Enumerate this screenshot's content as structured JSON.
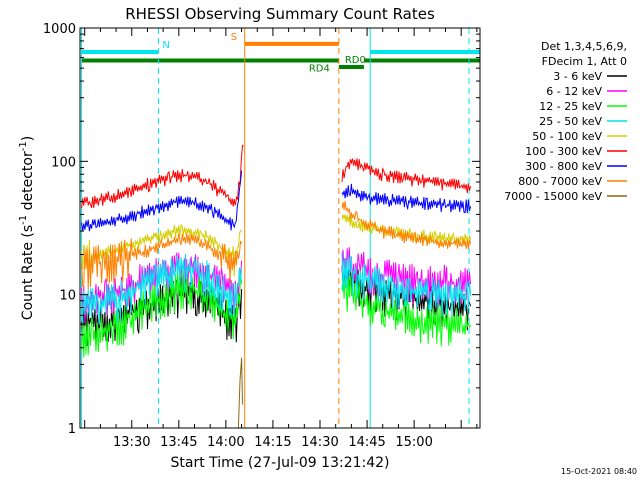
{
  "chart_data": {
    "type": "line",
    "title": "RHESSI Observing Summary Count Rates",
    "xlabel": "Start Time (27-Jul-09 13:21:42)",
    "ylabel_main": "Count Rate (s",
    "ylabel_sup1": "-1",
    "ylabel_mid": " detector",
    "ylabel_sup2": "-1",
    "ylabel_end": ")",
    "footer_date": "15-Oct-2021 08:40",
    "yscale": "log",
    "ylim": [
      1,
      1000
    ],
    "xlim_minutes": [
      13.5,
      141
    ],
    "x_ticks": [
      {
        "t": 30,
        "label": "13:30"
      },
      {
        "t": 45,
        "label": "13:45"
      },
      {
        "t": 60,
        "label": "14:00"
      },
      {
        "t": 75,
        "label": "14:15"
      },
      {
        "t": 90,
        "label": "14:30"
      },
      {
        "t": 105,
        "label": "14:45"
      },
      {
        "t": 120,
        "label": "15:00"
      }
    ],
    "y_ticks": [
      {
        "v": 1,
        "label": "1"
      },
      {
        "v": 10,
        "label": "10"
      },
      {
        "v": 100,
        "label": "100"
      },
      {
        "v": 1000,
        "label": "1000"
      }
    ],
    "legend_title_1": "Det 1,3,4,5,6,9,",
    "legend_title_2": "FDecim 1, Att 0",
    "legend_position": "top-right",
    "flags": [
      {
        "label": "N",
        "color": "#00e5ee",
        "y": 660,
        "segments": [
          [
            14,
            38.5
          ],
          [
            106,
            141
          ]
        ]
      },
      {
        "label": "S",
        "color": "#ff8000",
        "y": 760,
        "segments": [
          [
            66,
            96
          ]
        ]
      },
      {
        "label": "RD4",
        "color": "#008000",
        "y": 570,
        "segments": [
          [
            14,
            96
          ],
          [
            104,
            141
          ]
        ]
      },
      {
        "label": "RD0",
        "color": "#008000",
        "y": 510,
        "segments": [
          [
            96,
            104
          ]
        ]
      }
    ],
    "vlines": [
      {
        "t": 14,
        "color": "#00e5ee",
        "dash": false
      },
      {
        "t": 38.5,
        "color": "#00e5ee",
        "dash": true
      },
      {
        "t": 66,
        "color": "#ff8000",
        "dash": false
      },
      {
        "t": 96,
        "color": "#ff8000",
        "dash": true
      },
      {
        "t": 106,
        "color": "#00e5ee",
        "dash": false
      },
      {
        "t": 137.5,
        "color": "#00e5ee",
        "dash": true
      }
    ],
    "series": [
      {
        "name": "3 - 6 keV",
        "color": "#000000",
        "segA": [
          [
            14,
            5.9
          ],
          [
            25,
            6.5
          ],
          [
            35,
            8.2
          ],
          [
            45,
            10.3
          ],
          [
            50,
            10.5
          ],
          [
            55,
            9.2
          ],
          [
            60,
            7.0
          ],
          [
            63,
            6.1
          ],
          [
            65,
            11
          ]
        ],
        "segB": [
          [
            97,
            14.5
          ],
          [
            100,
            13.0
          ],
          [
            105,
            11.2
          ],
          [
            110,
            10.2
          ],
          [
            120,
            9.3
          ],
          [
            130,
            8.6
          ],
          [
            138,
            8.2
          ]
        ]
      },
      {
        "name": "6 - 12 keV",
        "color": "#ff00ff",
        "segA": [
          [
            14,
            9.0
          ],
          [
            25,
            10.2
          ],
          [
            35,
            13.5
          ],
          [
            45,
            16.0
          ],
          [
            50,
            15.5
          ],
          [
            55,
            13.5
          ],
          [
            60,
            11.5
          ],
          [
            63,
            10.0
          ],
          [
            65,
            18
          ]
        ],
        "segB": [
          [
            97,
            17.5
          ],
          [
            100,
            17.0
          ],
          [
            105,
            15.5
          ],
          [
            110,
            14.0
          ],
          [
            120,
            13.0
          ],
          [
            130,
            12.5
          ],
          [
            138,
            12.0
          ]
        ]
      },
      {
        "name": "12 - 25 keV",
        "color": "#00ff00",
        "segA": [
          [
            14,
            4.8
          ],
          [
            25,
            5.8
          ],
          [
            35,
            8.5
          ],
          [
            45,
            11.5
          ],
          [
            50,
            11.0
          ],
          [
            55,
            9.0
          ],
          [
            60,
            7.2
          ],
          [
            63,
            6.0
          ],
          [
            65,
            12
          ]
        ],
        "segB": [
          [
            97,
            12.0
          ],
          [
            100,
            10.5
          ],
          [
            105,
            8.5
          ],
          [
            110,
            7.5
          ],
          [
            120,
            6.5
          ],
          [
            130,
            6.1
          ],
          [
            138,
            5.9
          ]
        ]
      },
      {
        "name": "25 - 50 keV",
        "color": "#00e5ee",
        "segA": [
          [
            14,
            8.0
          ],
          [
            25,
            9.2
          ],
          [
            35,
            12.5
          ],
          [
            45,
            15.5
          ],
          [
            50,
            15.0
          ],
          [
            55,
            13.0
          ],
          [
            60,
            10.5
          ],
          [
            63,
            9.5
          ],
          [
            65,
            16
          ]
        ],
        "segB": [
          [
            97,
            16.0
          ],
          [
            100,
            15.0
          ],
          [
            105,
            13.0
          ],
          [
            110,
            12.0
          ],
          [
            120,
            10.5
          ],
          [
            130,
            10.0
          ],
          [
            138,
            9.8
          ]
        ]
      },
      {
        "name": "50 - 100 keV",
        "color": "#d4cd00",
        "segA": [
          [
            14,
            19.5
          ],
          [
            25,
            21.5
          ],
          [
            35,
            26.0
          ],
          [
            45,
            30.5
          ],
          [
            50,
            29.5
          ],
          [
            55,
            26.5
          ],
          [
            60,
            21.5
          ],
          [
            63,
            19.5
          ],
          [
            65,
            30
          ]
        ],
        "segB": [
          [
            97,
            38.0
          ],
          [
            100,
            36.0
          ],
          [
            105,
            32.0
          ],
          [
            110,
            30.0
          ],
          [
            120,
            28.0
          ],
          [
            130,
            26.5
          ],
          [
            138,
            26.0
          ]
        ]
      },
      {
        "name": "100 - 300 keV",
        "color": "#ff0000",
        "segA": [
          [
            14,
            48
          ],
          [
            25,
            55
          ],
          [
            35,
            67
          ],
          [
            45,
            79
          ],
          [
            50,
            78
          ],
          [
            55,
            68
          ],
          [
            60,
            55
          ],
          [
            63,
            48
          ],
          [
            64.5,
            70
          ],
          [
            65.3,
            145
          ],
          [
            65.6,
            130
          ]
        ],
        "segB": [
          [
            97,
            75
          ],
          [
            99,
            95
          ],
          [
            100,
            98
          ],
          [
            105,
            88
          ],
          [
            110,
            80
          ],
          [
            120,
            73
          ],
          [
            130,
            68
          ],
          [
            138,
            65
          ]
        ]
      },
      {
        "name": "300 - 800 keV",
        "color": "#0000ff",
        "segA": [
          [
            14,
            32
          ],
          [
            25,
            36
          ],
          [
            35,
            43
          ],
          [
            45,
            50
          ],
          [
            50,
            49
          ],
          [
            55,
            44
          ],
          [
            60,
            37
          ],
          [
            63,
            32
          ],
          [
            65,
            85
          ]
        ],
        "segB": [
          [
            97,
            58
          ],
          [
            100,
            62
          ],
          [
            102,
            55
          ],
          [
            105,
            54
          ],
          [
            110,
            52
          ],
          [
            120,
            49
          ],
          [
            130,
            47
          ],
          [
            138,
            46
          ]
        ]
      },
      {
        "name": "800 - 7000 keV",
        "color": "#ff8000",
        "segA": [
          [
            14,
            16.5
          ],
          [
            25,
            18.5
          ],
          [
            35,
            21.5
          ],
          [
            45,
            26.5
          ],
          [
            50,
            26.0
          ],
          [
            55,
            22.5
          ],
          [
            60,
            19.0
          ],
          [
            63,
            17.0
          ],
          [
            65,
            24
          ]
        ],
        "segB": [
          [
            97,
            50
          ],
          [
            100,
            40
          ],
          [
            105,
            34
          ],
          [
            110,
            30
          ],
          [
            120,
            26.5
          ],
          [
            130,
            24.5
          ],
          [
            138,
            24.0
          ]
        ]
      },
      {
        "name": "7000 - 15000 keV",
        "color": "#8b6914",
        "segA": [
          [
            64,
            1.0
          ],
          [
            64.5,
            2.0
          ],
          [
            65,
            3.8
          ],
          [
            65.3,
            1.5
          ]
        ],
        "segB": []
      }
    ]
  }
}
